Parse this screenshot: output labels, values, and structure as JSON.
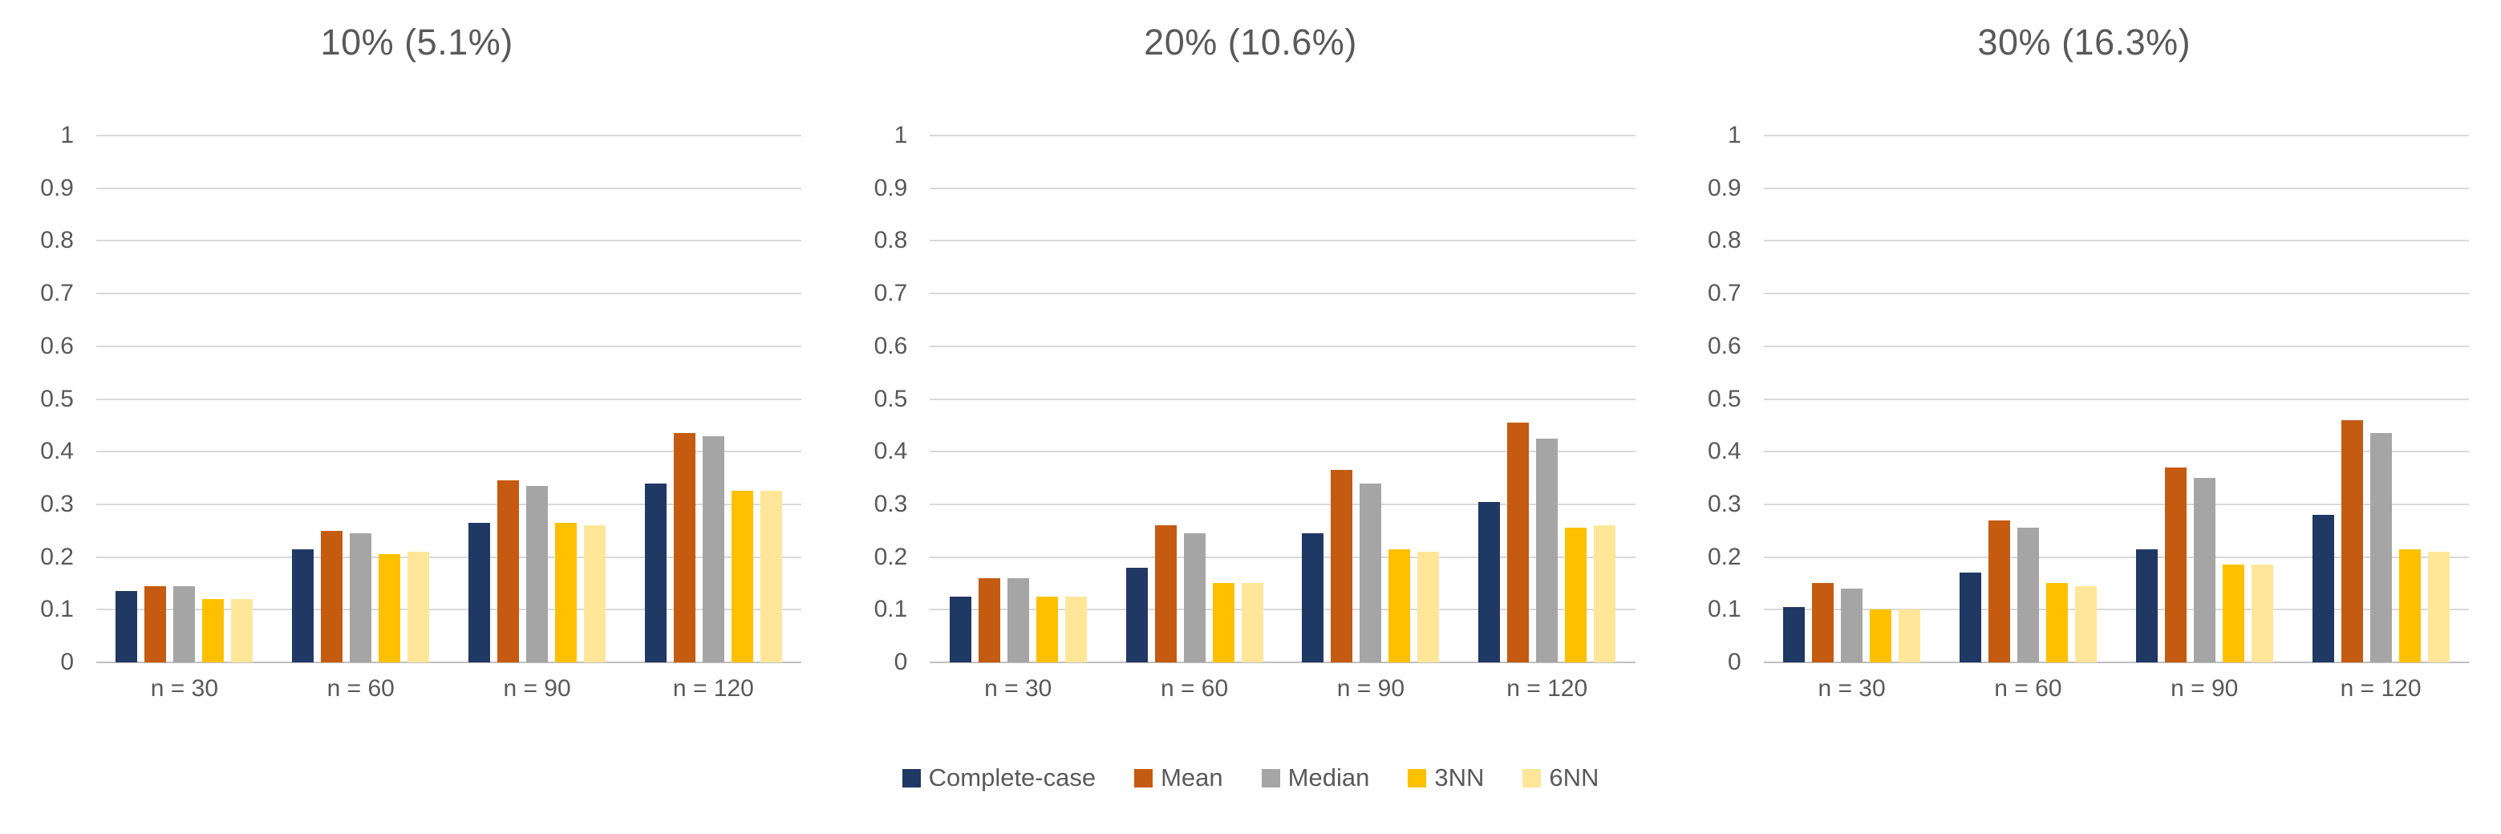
{
  "text_color": "#595959",
  "gridline_color": "#D9D9D9",
  "baseline_color": "#BFBFBF",
  "background_color": "#FFFFFF",
  "series_colors": {
    "complete_case": "#203864",
    "mean": "#C55A11",
    "median": "#A5A5A5",
    "three_nn": "#FFC000",
    "six_nn": "#FFE699"
  },
  "legend": {
    "items": [
      {
        "label": "Complete-case",
        "color": "#203864",
        "icon": "legend-swatch-complete-case"
      },
      {
        "label": "Mean",
        "color": "#C55A11",
        "icon": "legend-swatch-mean"
      },
      {
        "label": "Median",
        "color": "#A5A5A5",
        "icon": "legend-swatch-median"
      },
      {
        "label": "3NN",
        "color": "#FFC000",
        "icon": "legend-swatch-3nn"
      },
      {
        "label": "6NN",
        "color": "#FFE699",
        "icon": "legend-swatch-6nn"
      }
    ],
    "position": "bottom-center"
  },
  "chart_data": [
    {
      "type": "bar",
      "title": "10% (5.1%)",
      "categories": [
        "n = 30",
        "n = 60",
        "n = 90",
        "n = 120"
      ],
      "series": [
        {
          "name": "Complete-case",
          "color": "#203864",
          "values": [
            0.135,
            0.215,
            0.265,
            0.34
          ]
        },
        {
          "name": "Mean",
          "color": "#C55A11",
          "values": [
            0.145,
            0.25,
            0.345,
            0.435
          ]
        },
        {
          "name": "Median",
          "color": "#A5A5A5",
          "values": [
            0.145,
            0.245,
            0.335,
            0.43
          ]
        },
        {
          "name": "3NN",
          "color": "#FFC000",
          "values": [
            0.12,
            0.205,
            0.265,
            0.325
          ]
        },
        {
          "name": "6NN",
          "color": "#FFE699",
          "values": [
            0.12,
            0.21,
            0.26,
            0.325
          ]
        }
      ],
      "xlabel": "",
      "ylabel": "",
      "ylim": [
        0,
        1
      ],
      "yticks": [
        "1",
        "0.9",
        "0.8",
        "0.7",
        "0.6",
        "0.5",
        "0.4",
        "0.3",
        "0.2",
        "0.1",
        "0"
      ],
      "grid": true
    },
    {
      "type": "bar",
      "title": "20% (10.6%)",
      "categories": [
        "n = 30",
        "n = 60",
        "n = 90",
        "n = 120"
      ],
      "series": [
        {
          "name": "Complete-case",
          "color": "#203864",
          "values": [
            0.125,
            0.18,
            0.245,
            0.305
          ]
        },
        {
          "name": "Mean",
          "color": "#C55A11",
          "values": [
            0.16,
            0.26,
            0.365,
            0.455
          ]
        },
        {
          "name": "Median",
          "color": "#A5A5A5",
          "values": [
            0.16,
            0.245,
            0.34,
            0.425
          ]
        },
        {
          "name": "3NN",
          "color": "#FFC000",
          "values": [
            0.125,
            0.15,
            0.215,
            0.255
          ]
        },
        {
          "name": "6NN",
          "color": "#FFE699",
          "values": [
            0.125,
            0.15,
            0.21,
            0.26
          ]
        }
      ],
      "xlabel": "",
      "ylabel": "",
      "ylim": [
        0,
        1
      ],
      "yticks": [
        "1",
        "0.9",
        "0.8",
        "0.7",
        "0.6",
        "0.5",
        "0.4",
        "0.3",
        "0.2",
        "0.1",
        "0"
      ],
      "grid": true
    },
    {
      "type": "bar",
      "title": "30% (16.3%)",
      "categories": [
        "n = 30",
        "n = 60",
        "n = 90",
        "n = 120"
      ],
      "series": [
        {
          "name": "Complete-case",
          "color": "#203864",
          "values": [
            0.105,
            0.17,
            0.215,
            0.28
          ]
        },
        {
          "name": "Mean",
          "color": "#C55A11",
          "values": [
            0.15,
            0.27,
            0.37,
            0.46
          ]
        },
        {
          "name": "Median",
          "color": "#A5A5A5",
          "values": [
            0.14,
            0.255,
            0.35,
            0.435
          ]
        },
        {
          "name": "3NN",
          "color": "#FFC000",
          "values": [
            0.1,
            0.15,
            0.185,
            0.215
          ]
        },
        {
          "name": "6NN",
          "color": "#FFE699",
          "values": [
            0.1,
            0.145,
            0.185,
            0.21
          ]
        }
      ],
      "xlabel": "",
      "ylabel": "",
      "ylim": [
        0,
        1
      ],
      "yticks": [
        "1",
        "0.9",
        "0.8",
        "0.7",
        "0.6",
        "0.5",
        "0.4",
        "0.3",
        "0.2",
        "0.1",
        "0"
      ],
      "grid": true
    }
  ]
}
